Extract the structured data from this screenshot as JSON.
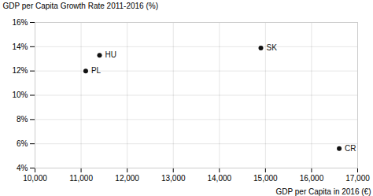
{
  "chart_data": {
    "type": "scatter",
    "x": [
      11400,
      11100,
      14900,
      16600
    ],
    "values": [
      13.3,
      12.0,
      13.9,
      5.6
    ],
    "annotations": [
      "HU",
      "PL",
      "SK",
      "CR"
    ],
    "color": "#111111",
    "xlabel": "GDP per Capita in 2016 (€)",
    "ylabel": "GDP per Capita Growth Rate 2011-2016 (%)",
    "xlim": [
      10000,
      17000
    ],
    "ylim": [
      4,
      16
    ],
    "xticks": [
      {
        "value": 10000,
        "label": "10,000"
      },
      {
        "value": 11000,
        "label": "11,000"
      },
      {
        "value": 12000,
        "label": "12,000"
      },
      {
        "value": 13000,
        "label": "13,000"
      },
      {
        "value": 14000,
        "label": "14,000"
      },
      {
        "value": 15000,
        "label": "15,000"
      },
      {
        "value": 16000,
        "label": "16,000"
      },
      {
        "value": 17000,
        "label": "17,000"
      }
    ],
    "yticks": [
      {
        "value": 4,
        "label": "4%"
      },
      {
        "value": 6,
        "label": "6%"
      },
      {
        "value": 8,
        "label": "8%"
      },
      {
        "value": 10,
        "label": "10%"
      },
      {
        "value": 12,
        "label": "12%"
      },
      {
        "value": 14,
        "label": "14%"
      },
      {
        "value": 16,
        "label": "16%"
      }
    ],
    "grid": true
  }
}
